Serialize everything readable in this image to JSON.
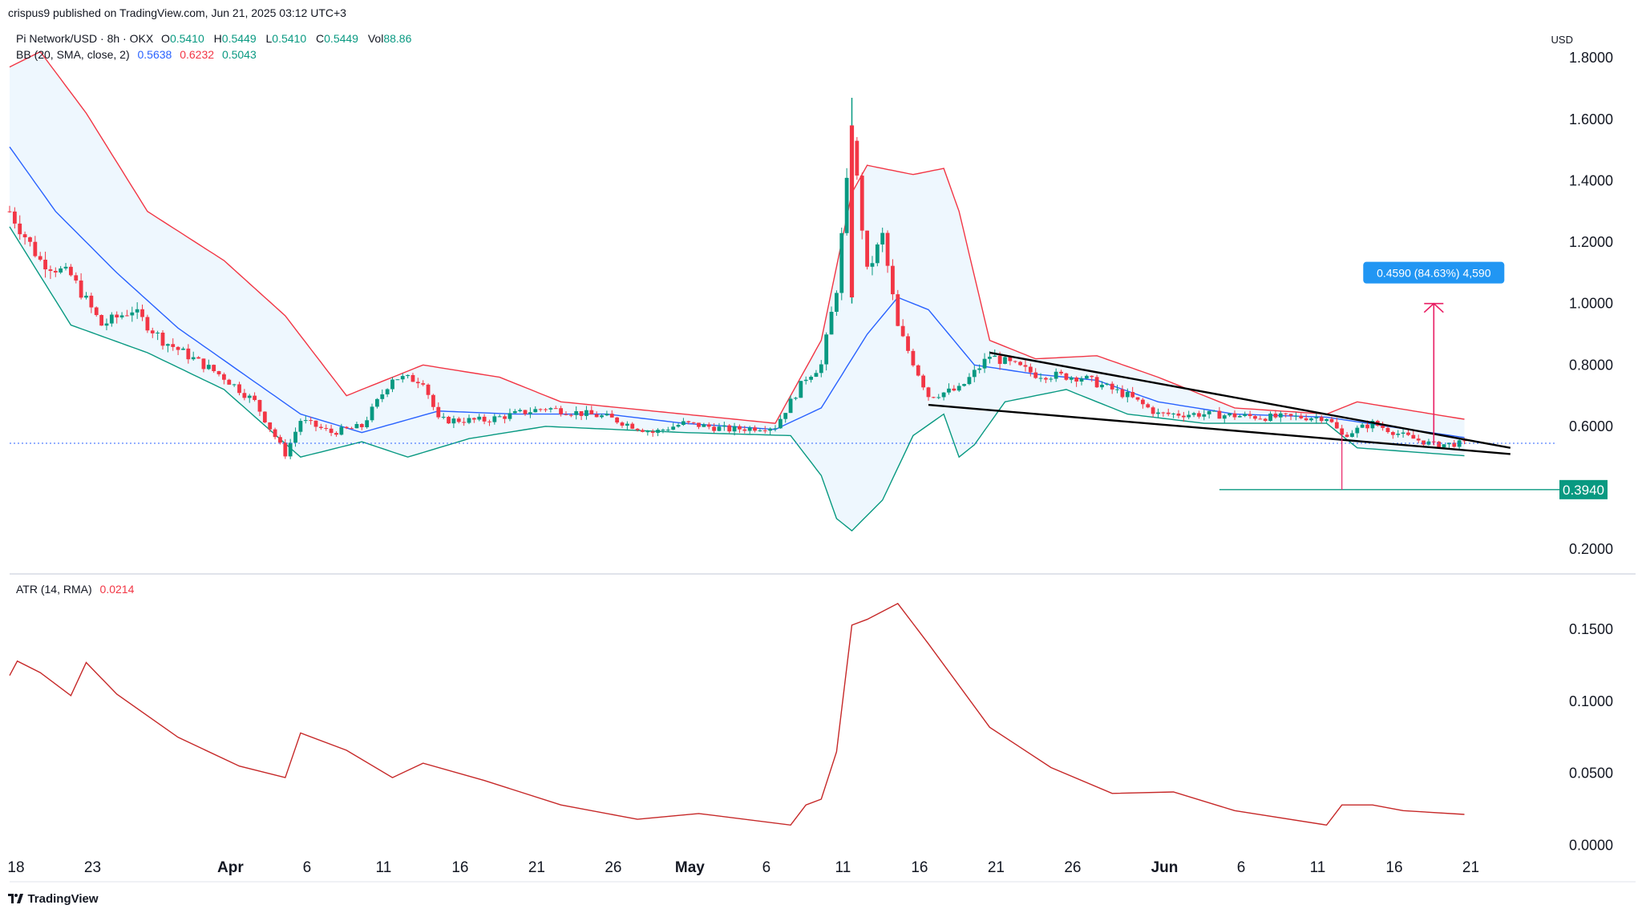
{
  "header": {
    "published": "crispus9 published on TradingView.com, Jun 21, 2025 03:12 UTC+3",
    "symbol": "Pi Network/USD · 8h · OKX",
    "o_label": "O",
    "o_value": "0.5410",
    "h_label": "H",
    "h_value": "0.5449",
    "l_label": "L",
    "l_value": "0.5410",
    "c_label": "C",
    "c_value": "0.5449",
    "vol_label": "Vol",
    "vol_value": "88.86",
    "bb_label": "BB (20, SMA, close, 2)",
    "bb_basis": "0.5638",
    "bb_upper": "0.6232",
    "bb_lower": "0.5043",
    "atr_label": "ATR (14, RMA)",
    "atr_value": "0.0214",
    "currency": "USD"
  },
  "footer": {
    "brand": "TradingView"
  },
  "colors": {
    "up": "#089981",
    "down": "#f23645",
    "basis": "#2962ff",
    "upper": "#f23645",
    "lower": "#089981",
    "band_fill": "#e3f2fd",
    "atr": "#c62828",
    "price_line": "#2962ff",
    "measure": "#e91e63",
    "measure_badge": "#2196f3"
  },
  "chart_data": [
    {
      "type": "candlestick",
      "title": "Pi Network/USD · 8h · OKX",
      "ylim": [
        0.13,
        1.91
      ],
      "y_ticks": [
        "1.8000",
        "1.6000",
        "1.4000",
        "1.2000",
        "1.0000",
        "0.8000",
        "0.6000",
        "0.2000"
      ],
      "x_ticks": [
        "18",
        "23",
        "Apr",
        "6",
        "11",
        "16",
        "21",
        "26",
        "May",
        "6",
        "11",
        "16",
        "21",
        "26",
        "Jun",
        "6",
        "11",
        "16",
        "21"
      ],
      "close_path": [
        {
          "d": "2025-03-18",
          "c": 1.3
        },
        {
          "d": "2025-03-20",
          "c": 1.14
        },
        {
          "d": "2025-03-22",
          "c": 1.09
        },
        {
          "d": "2025-03-24",
          "c": 0.93
        },
        {
          "d": "2025-03-26",
          "c": 0.98
        },
        {
          "d": "2025-03-28",
          "c": 0.88
        },
        {
          "d": "2025-03-30",
          "c": 0.82
        },
        {
          "d": "2025-04-01",
          "c": 0.76
        },
        {
          "d": "2025-04-03",
          "c": 0.68
        },
        {
          "d": "2025-04-05",
          "c": 0.51
        },
        {
          "d": "2025-04-06",
          "c": 0.62
        },
        {
          "d": "2025-04-08",
          "c": 0.58
        },
        {
          "d": "2025-04-10",
          "c": 0.6
        },
        {
          "d": "2025-04-12",
          "c": 0.76
        },
        {
          "d": "2025-04-14",
          "c": 0.75
        },
        {
          "d": "2025-04-15",
          "c": 0.62
        },
        {
          "d": "2025-04-18",
          "c": 0.62
        },
        {
          "d": "2025-04-22",
          "c": 0.66
        },
        {
          "d": "2025-04-26",
          "c": 0.63
        },
        {
          "d": "2025-04-29",
          "c": 0.58
        },
        {
          "d": "2025-05-01",
          "c": 0.61
        },
        {
          "d": "2025-05-04",
          "c": 0.59
        },
        {
          "d": "2025-05-07",
          "c": 0.6
        },
        {
          "d": "2025-05-09",
          "c": 0.76
        },
        {
          "d": "2025-05-10",
          "c": 0.8
        },
        {
          "d": "2025-05-11",
          "c": 1.05
        },
        {
          "d": "2025-05-12",
          "c": 1.55
        },
        {
          "d": "2025-05-13",
          "c": 1.1
        },
        {
          "d": "2025-05-14",
          "c": 1.22
        },
        {
          "d": "2025-05-15",
          "c": 0.92
        },
        {
          "d": "2025-05-17",
          "c": 0.7
        },
        {
          "d": "2025-05-19",
          "c": 0.72
        },
        {
          "d": "2025-05-21",
          "c": 0.83
        },
        {
          "d": "2025-05-24",
          "c": 0.77
        },
        {
          "d": "2025-05-27",
          "c": 0.76
        },
        {
          "d": "2025-05-30",
          "c": 0.7
        },
        {
          "d": "2025-06-01",
          "c": 0.64
        },
        {
          "d": "2025-06-04",
          "c": 0.64
        },
        {
          "d": "2025-06-08",
          "c": 0.63
        },
        {
          "d": "2025-06-12",
          "c": 0.63
        },
        {
          "d": "2025-06-13",
          "c": 0.57
        },
        {
          "d": "2025-06-15",
          "c": 0.61
        },
        {
          "d": "2025-06-17",
          "c": 0.57
        },
        {
          "d": "2025-06-19",
          "c": 0.54
        },
        {
          "d": "2025-06-21",
          "c": 0.5449
        }
      ],
      "bb_basis": [
        {
          "d": "2025-03-18",
          "v": 1.51
        },
        {
          "d": "2025-03-21",
          "v": 1.3
        },
        {
          "d": "2025-03-25",
          "v": 1.1
        },
        {
          "d": "2025-03-29",
          "v": 0.92
        },
        {
          "d": "2025-04-02",
          "v": 0.78
        },
        {
          "d": "2025-04-06",
          "v": 0.64
        },
        {
          "d": "2025-04-10",
          "v": 0.58
        },
        {
          "d": "2025-04-15",
          "v": 0.65
        },
        {
          "d": "2025-04-20",
          "v": 0.64
        },
        {
          "d": "2025-04-26",
          "v": 0.64
        },
        {
          "d": "2025-05-01",
          "v": 0.61
        },
        {
          "d": "2025-05-07",
          "v": 0.59
        },
        {
          "d": "2025-05-10",
          "v": 0.66
        },
        {
          "d": "2025-05-13",
          "v": 0.9
        },
        {
          "d": "2025-05-15",
          "v": 1.02
        },
        {
          "d": "2025-05-17",
          "v": 0.98
        },
        {
          "d": "2025-05-20",
          "v": 0.8
        },
        {
          "d": "2025-05-24",
          "v": 0.77
        },
        {
          "d": "2025-05-28",
          "v": 0.75
        },
        {
          "d": "2025-06-01",
          "v": 0.68
        },
        {
          "d": "2025-06-06",
          "v": 0.64
        },
        {
          "d": "2025-06-12",
          "v": 0.63
        },
        {
          "d": "2025-06-16",
          "v": 0.6
        },
        {
          "d": "2025-06-21",
          "v": 0.5638
        }
      ],
      "bb_upper": [
        {
          "d": "2025-03-18",
          "v": 1.77
        },
        {
          "d": "2025-03-20",
          "v": 1.82
        },
        {
          "d": "2025-03-23",
          "v": 1.62
        },
        {
          "d": "2025-03-27",
          "v": 1.3
        },
        {
          "d": "2025-04-01",
          "v": 1.14
        },
        {
          "d": "2025-04-05",
          "v": 0.96
        },
        {
          "d": "2025-04-09",
          "v": 0.7
        },
        {
          "d": "2025-04-14",
          "v": 0.8
        },
        {
          "d": "2025-04-19",
          "v": 0.76
        },
        {
          "d": "2025-04-23",
          "v": 0.68
        },
        {
          "d": "2025-05-01",
          "v": 0.64
        },
        {
          "d": "2025-05-07",
          "v": 0.61
        },
        {
          "d": "2025-05-10",
          "v": 0.88
        },
        {
          "d": "2025-05-12",
          "v": 1.36
        },
        {
          "d": "2025-05-13",
          "v": 1.45
        },
        {
          "d": "2025-05-16",
          "v": 1.42
        },
        {
          "d": "2025-05-18",
          "v": 1.44
        },
        {
          "d": "2025-05-19",
          "v": 1.3
        },
        {
          "d": "2025-05-21",
          "v": 0.88
        },
        {
          "d": "2025-05-24",
          "v": 0.82
        },
        {
          "d": "2025-05-28",
          "v": 0.83
        },
        {
          "d": "2025-06-01",
          "v": 0.76
        },
        {
          "d": "2025-06-06",
          "v": 0.66
        },
        {
          "d": "2025-06-12",
          "v": 0.64
        },
        {
          "d": "2025-06-14",
          "v": 0.68
        },
        {
          "d": "2025-06-21",
          "v": 0.6232
        }
      ],
      "bb_lower": [
        {
          "d": "2025-03-18",
          "v": 1.25
        },
        {
          "d": "2025-03-22",
          "v": 0.93
        },
        {
          "d": "2025-03-27",
          "v": 0.84
        },
        {
          "d": "2025-04-01",
          "v": 0.72
        },
        {
          "d": "2025-04-06",
          "v": 0.5
        },
        {
          "d": "2025-04-10",
          "v": 0.55
        },
        {
          "d": "2025-04-13",
          "v": 0.5
        },
        {
          "d": "2025-04-17",
          "v": 0.56
        },
        {
          "d": "2025-04-22",
          "v": 0.6
        },
        {
          "d": "2025-05-01",
          "v": 0.58
        },
        {
          "d": "2025-05-08",
          "v": 0.57
        },
        {
          "d": "2025-05-10",
          "v": 0.44
        },
        {
          "d": "2025-05-11",
          "v": 0.3
        },
        {
          "d": "2025-05-12",
          "v": 0.26
        },
        {
          "d": "2025-05-14",
          "v": 0.36
        },
        {
          "d": "2025-05-16",
          "v": 0.57
        },
        {
          "d": "2025-05-18",
          "v": 0.64
        },
        {
          "d": "2025-05-19",
          "v": 0.5
        },
        {
          "d": "2025-05-20",
          "v": 0.54
        },
        {
          "d": "2025-05-22",
          "v": 0.68
        },
        {
          "d": "2025-05-26",
          "v": 0.72
        },
        {
          "d": "2025-05-30",
          "v": 0.64
        },
        {
          "d": "2025-06-04",
          "v": 0.61
        },
        {
          "d": "2025-06-12",
          "v": 0.61
        },
        {
          "d": "2025-06-14",
          "v": 0.53
        },
        {
          "d": "2025-06-21",
          "v": 0.5043
        }
      ],
      "annotations": {
        "spike_high": 1.67,
        "wedge_upper": [
          {
            "d": "2025-05-21",
            "v": 0.84
          },
          {
            "d": "2025-06-24",
            "v": 0.53
          }
        ],
        "wedge_lower": [
          {
            "d": "2025-05-17",
            "v": 0.67
          },
          {
            "d": "2025-06-24",
            "v": 0.51
          }
        ],
        "support_level": "0.3940",
        "support_value": 0.394,
        "measure_label": "0.4590 (84.63%) 4,590",
        "measure_from": 0.54,
        "measure_to": 1.0,
        "current_price": 0.5449
      }
    },
    {
      "type": "line",
      "title": "ATR (14, RMA)",
      "ylim": [
        -0.002,
        0.178
      ],
      "y_ticks": [
        "0.1500",
        "0.1000",
        "0.0500",
        "0.0000"
      ],
      "series": [
        {
          "name": "ATR (14, RMA)",
          "values": [
            {
              "d": "2025-03-18",
              "v": 0.118
            },
            {
              "d": "2025-03-18T12",
              "v": 0.128
            },
            {
              "d": "2025-03-20",
              "v": 0.12
            },
            {
              "d": "2025-03-22",
              "v": 0.104
            },
            {
              "d": "2025-03-23",
              "v": 0.127
            },
            {
              "d": "2025-03-25",
              "v": 0.105
            },
            {
              "d": "2025-03-29",
              "v": 0.075
            },
            {
              "d": "2025-04-02",
              "v": 0.055
            },
            {
              "d": "2025-04-05",
              "v": 0.047
            },
            {
              "d": "2025-04-06",
              "v": 0.078
            },
            {
              "d": "2025-04-09",
              "v": 0.066
            },
            {
              "d": "2025-04-12",
              "v": 0.047
            },
            {
              "d": "2025-04-14",
              "v": 0.057
            },
            {
              "d": "2025-04-18",
              "v": 0.045
            },
            {
              "d": "2025-04-23",
              "v": 0.028
            },
            {
              "d": "2025-04-28",
              "v": 0.018
            },
            {
              "d": "2025-05-02",
              "v": 0.022
            },
            {
              "d": "2025-05-08",
              "v": 0.014
            },
            {
              "d": "2025-05-09",
              "v": 0.028
            },
            {
              "d": "2025-05-10",
              "v": 0.032
            },
            {
              "d": "2025-05-11",
              "v": 0.065
            },
            {
              "d": "2025-05-12",
              "v": 0.153
            },
            {
              "d": "2025-05-13",
              "v": 0.157
            },
            {
              "d": "2025-05-15",
              "v": 0.168
            },
            {
              "d": "2025-05-17",
              "v": 0.14
            },
            {
              "d": "2025-05-21",
              "v": 0.082
            },
            {
              "d": "2025-05-25",
              "v": 0.054
            },
            {
              "d": "2025-05-29",
              "v": 0.036
            },
            {
              "d": "2025-06-02",
              "v": 0.037
            },
            {
              "d": "2025-06-06",
              "v": 0.024
            },
            {
              "d": "2025-06-12",
              "v": 0.014
            },
            {
              "d": "2025-06-13",
              "v": 0.028
            },
            {
              "d": "2025-06-15",
              "v": 0.028
            },
            {
              "d": "2025-06-17",
              "v": 0.024
            },
            {
              "d": "2025-06-21",
              "v": 0.0214
            }
          ]
        }
      ]
    }
  ]
}
